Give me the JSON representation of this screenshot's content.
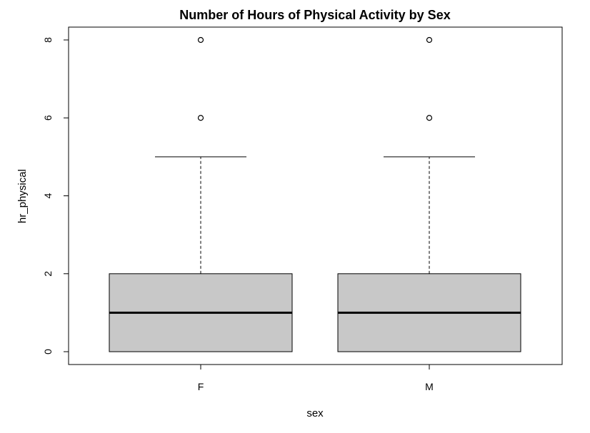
{
  "chart_data": {
    "type": "boxplot",
    "title": "Number of Hours of Physical Activity by Sex",
    "xlabel": "sex",
    "ylabel": "hr_physical",
    "ylim": [
      -0.3,
      8.3
    ],
    "yticks": [
      0,
      2,
      4,
      6,
      8
    ],
    "categories": [
      "F",
      "M"
    ],
    "boxes": [
      {
        "category": "F",
        "min": 0,
        "q1": 0,
        "median": 1,
        "q3": 2,
        "whisker_high": 5,
        "outliers": [
          6,
          8
        ]
      },
      {
        "category": "M",
        "min": 0,
        "q1": 0,
        "median": 1,
        "q3": 2,
        "whisker_high": 5,
        "outliers": [
          6,
          8
        ]
      }
    ],
    "box_fill": "#c8c8c8",
    "grid": false
  }
}
